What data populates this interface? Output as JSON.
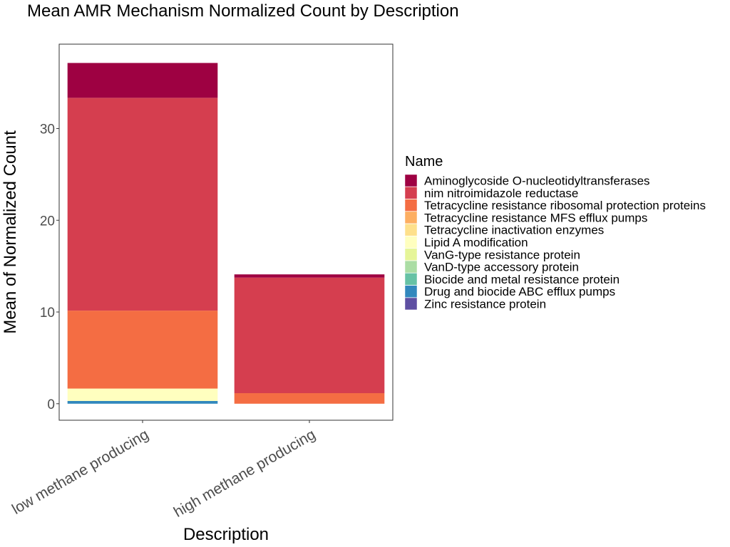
{
  "chart_data": {
    "type": "bar",
    "stacked": true,
    "title": "Mean AMR Mechanism Normalized Count by Description",
    "xlabel": "Description",
    "ylabel": "Mean of Normalized Count",
    "categories": [
      "low methane producing",
      "high methane producing"
    ],
    "yticks": [
      0,
      10,
      20,
      30
    ],
    "ylim": [
      -1.8,
      39.2
    ],
    "grid": false,
    "legend_title": "Name",
    "legend_position": "right",
    "series": [
      {
        "name": "Aminoglycoside O-nucleotidyltransferases",
        "color": "#9E0142",
        "values": [
          3.8,
          0.35
        ]
      },
      {
        "name": "nim nitroimidazole reductase",
        "color": "#D53E4F",
        "values": [
          23.2,
          12.6
        ]
      },
      {
        "name": "Tetracycline resistance ribosomal protection proteins",
        "color": "#F46D43",
        "values": [
          8.5,
          1.15
        ]
      },
      {
        "name": "Tetracycline resistance MFS efflux pumps",
        "color": "#FDAE61",
        "values": [
          0,
          0
        ]
      },
      {
        "name": "Tetracycline inactivation enzymes",
        "color": "#FEE08B",
        "values": [
          0,
          0
        ]
      },
      {
        "name": "Lipid A modification",
        "color": "#FFFFBF",
        "values": [
          1.35,
          0
        ]
      },
      {
        "name": "VanG-type resistance protein",
        "color": "#E6F598",
        "values": [
          0,
          0
        ]
      },
      {
        "name": "VanD-type accessory protein",
        "color": "#ABDDA4",
        "values": [
          0,
          0
        ]
      },
      {
        "name": "Biocide and metal resistance protein",
        "color": "#66C2A5",
        "values": [
          0,
          0
        ]
      },
      {
        "name": "Drug and biocide ABC efflux pumps",
        "color": "#3288BD",
        "values": [
          0.3,
          0
        ]
      },
      {
        "name": "Zinc resistance protein",
        "color": "#5E4FA2",
        "values": [
          0,
          0
        ]
      }
    ]
  }
}
